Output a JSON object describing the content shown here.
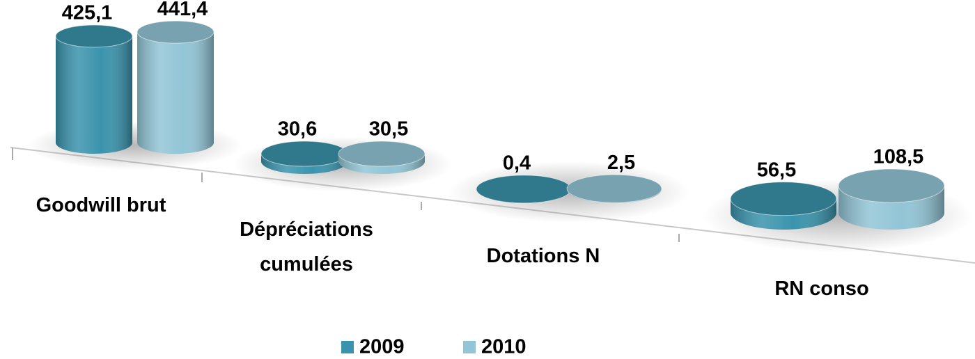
{
  "chart_data": {
    "type": "bar3d-cylinder",
    "categories": [
      "Goodwill brut",
      "Dépréciations cumulées",
      "Dotations N",
      "RN conso"
    ],
    "series": [
      {
        "name": "2009",
        "color": "#3a93ac",
        "values": [
          425.1,
          30.6,
          0.4,
          56.5
        ],
        "value_labels": [
          "425,1",
          "30,6",
          "0,4",
          "56,5"
        ]
      },
      {
        "name": "2010",
        "color": "#92c5d6",
        "values": [
          441.4,
          30.5,
          2.5,
          108.5
        ],
        "value_labels": [
          "441,4",
          "30,5",
          "2,5",
          "108,5"
        ]
      }
    ],
    "legend": "bottom"
  }
}
